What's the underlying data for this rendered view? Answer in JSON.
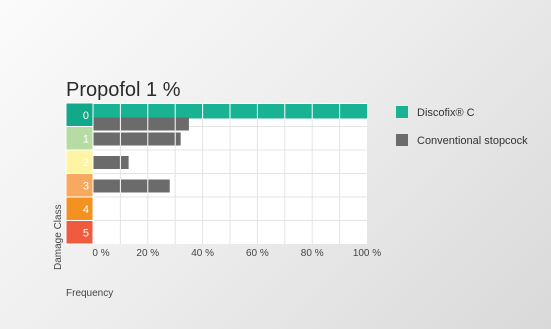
{
  "chart_data": {
    "type": "bar",
    "orientation": "horizontal",
    "title": "Propofol 1 %",
    "xlabel": "Frequency",
    "ylabel": "Damage Class",
    "xlim": [
      0,
      100
    ],
    "x_ticks": [
      "0 %",
      "20 %",
      "40 %",
      "60 %",
      "80 %",
      "100 %"
    ],
    "categories": [
      "0",
      "1",
      "2",
      "3",
      "4",
      "5"
    ],
    "category_colors": [
      "#12a88a",
      "#b7dca3",
      "#fff4a3",
      "#f7a960",
      "#f39121",
      "#ef5b3e"
    ],
    "series": [
      {
        "name": "Discofix® C",
        "color": "#19b394",
        "values": [
          100,
          0,
          0,
          0,
          0,
          0
        ]
      },
      {
        "name": "Conventional stopcock",
        "color": "#6b6b6b",
        "values": [
          35,
          32,
          13,
          28,
          0,
          0
        ]
      }
    ],
    "grid": true,
    "legend_position": "right"
  }
}
